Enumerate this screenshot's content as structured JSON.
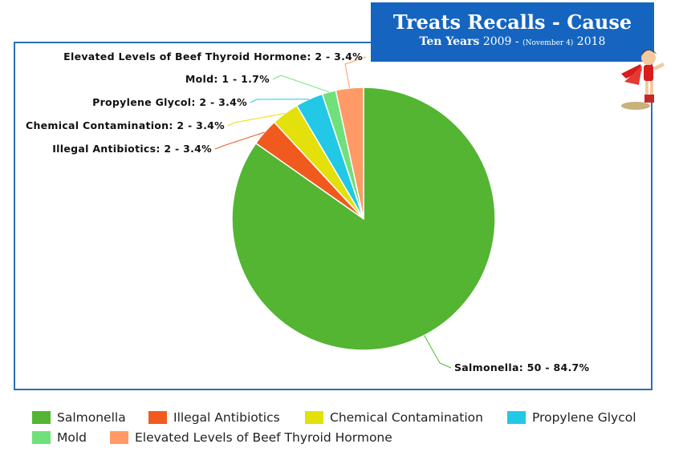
{
  "title": {
    "main": "Treats Recalls - Cause",
    "sub_bold": "Ten Years",
    "sub_start": "2009 -",
    "sub_small": "(November 4)",
    "sub_end": "2018"
  },
  "chart_data": {
    "type": "pie",
    "title": "Treats Recalls - Cause",
    "subtitle": "Ten Years 2009 - (November 4) 2018",
    "categories": [
      "Salmonella",
      "Illegal Antibiotics",
      "Chemical Contamination",
      "Propylene Glycol",
      "Mold",
      "Elevated Levels of Beef Thyroid Hormone"
    ],
    "values": [
      50,
      2,
      2,
      2,
      1,
      2
    ],
    "percentages": [
      84.7,
      3.4,
      3.4,
      3.4,
      1.7,
      3.4
    ],
    "colors": [
      "#53b532",
      "#f05a1e",
      "#e3e00b",
      "#22c8e6",
      "#6fe07a",
      "#ff9965"
    ],
    "data_labels": [
      "Salmonella: 50 - 84.7%",
      "Illegal Antibiotics: 2 - 3.4%",
      "Chemical Contamination: 2 - 3.4%",
      "Propylene Glycol: 2 - 3.4%",
      "Mold: 1 - 1.7%",
      "Elevated Levels of Beef Thyroid Hormone: 2 - 3.4%"
    ],
    "legend_position": "bottom"
  }
}
